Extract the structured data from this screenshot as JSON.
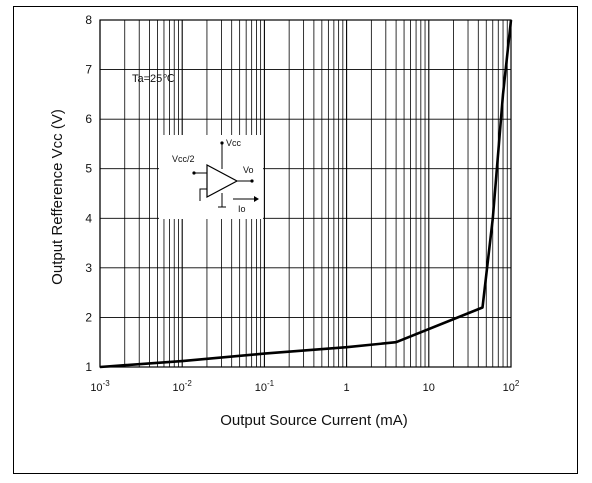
{
  "chart_data": {
    "type": "line",
    "xlabel": "Output Source Current  (mA)",
    "ylabel": "Output Refference Vcc  (V)",
    "x_scale": "log",
    "xlim": [
      0.001,
      100
    ],
    "ylim": [
      1,
      8
    ],
    "grid": true,
    "x_ticks": [
      {
        "base": "10",
        "exp": "-3"
      },
      {
        "base": "10",
        "exp": "-2"
      },
      {
        "base": "10",
        "exp": "-1"
      },
      {
        "base": "1",
        "exp": ""
      },
      {
        "base": "10",
        "exp": ""
      },
      {
        "base": "10",
        "exp": "2"
      }
    ],
    "y_ticks": [
      "1",
      "2",
      "3",
      "4",
      "5",
      "6",
      "7",
      "8"
    ],
    "annotation": "Ta=25℃",
    "inset_labels": {
      "vcc": "Vcc",
      "vcc2": "Vcc/2",
      "vo": "Vo",
      "io": "Io"
    },
    "series": [
      {
        "x": [
          0.001,
          0.01,
          0.1,
          1,
          4,
          45,
          60,
          80,
          100
        ],
        "y": [
          1.0,
          1.12,
          1.27,
          1.4,
          1.5,
          2.2,
          4.0,
          6.5,
          8.0
        ]
      }
    ]
  }
}
